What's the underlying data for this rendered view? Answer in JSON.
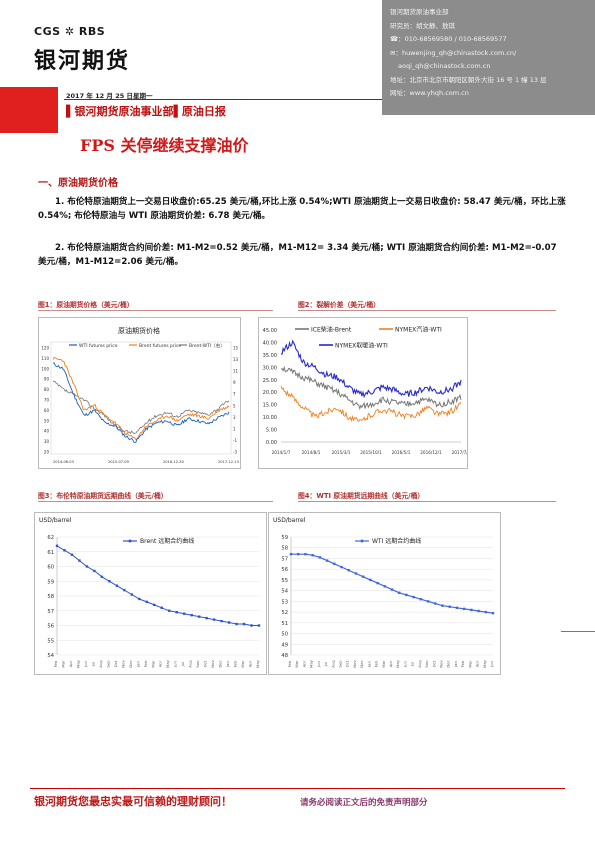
{
  "header": {
    "logo_brand": "CGS ✲ RBS",
    "logo_name": "银河期货",
    "date": "2017 年 12 月 25 日星期一",
    "department": "▌银河期货原油事业部▌原油日报",
    "title": "FPS 关停继续支撑油价"
  },
  "contact": {
    "lines": [
      "银河期货原油事业部",
      "研究员：胡文静、敖琪",
      "☎：010-68569580 / 010-68569577",
      "✉：huwenjing_qh@chinastock.com.cn/",
      "aoqi_qh@chinastock.com.cn",
      "地址：北京市北京市朝阳区朝外大街 16 号 1 幢 13 层",
      "网址：www.yhqh.com.cn"
    ]
  },
  "section1": {
    "heading": "一、原油期货价格",
    "p1": "1. 布伦特原油期货上一交易日收盘价:65.25 美元/桶,环比上涨 0.54%;WTI 原油期货上一交易日收盘价: 58.47 美元/桶，环比上涨 0.54%; 布伦特原油与 WTI 原油期货价差: 6.78 美元/桶。",
    "p2": "2. 布伦特原油期货合约间价差: M1-M2=0.52 美元/桶，M1-M12= 3.34 美元/桶; WTI 原油期货合约间价差: M1-M2=-0.07 美元/桶，M1-M12=2.06 美元/桶。"
  },
  "figures": {
    "fig1": "图1：原油期货价格（美元/桶）",
    "fig2": "图2：裂解价差（美元/桶）",
    "fig3": "图3：布伦特原油期货远期曲线（美元/桶）",
    "fig4": "图4：WTI 原油期货远期曲线（美元/桶）"
  },
  "footer": {
    "slogan": "银河期货您最忠实最可信赖的理财顾问！",
    "disclaimer": "请务必阅读正文后的免责声明部分"
  },
  "chart_data": [
    {
      "type": "line",
      "title": "原油期货价格",
      "series": [
        {
          "name": "WTI futures price",
          "color": "#1f5fbf"
        },
        {
          "name": "Brent futures price",
          "color": "#f08020"
        },
        {
          "name": "Brent-WTI（右）",
          "color": "#777777"
        }
      ],
      "x_ticks": [
        "2014-06-03",
        "2015-07-09",
        "2016-12-30",
        "2017-12-13"
      ],
      "y_left": [
        "120",
        "110",
        "100",
        "90",
        "80",
        "70",
        "60",
        "50",
        "40",
        "30",
        "20"
      ],
      "y_right": [
        "15",
        "13",
        "11",
        "9",
        "7",
        "5",
        "3",
        "1",
        "-1",
        "-3"
      ]
    },
    {
      "type": "line",
      "title": "",
      "series": [
        {
          "name": "ICE柴油-Brent",
          "color": "#777777"
        },
        {
          "name": "NYMEX汽油-WTI",
          "color": "#f08020"
        },
        {
          "name": "NYMEX取暖油-WTI",
          "color": "#2a2ad0"
        }
      ],
      "ylim": [
        0,
        45
      ],
      "y_ticks": [
        "45.00",
        "40.00",
        "35.00",
        "30.00",
        "25.00",
        "20.00",
        "15.00",
        "10.00",
        "5.00",
        "0.00"
      ],
      "x_ticks": [
        "2014/1/7",
        "2014/8/1",
        "2015/3/1",
        "2015/10/1",
        "2016/5/1",
        "2016/12/1",
        "2017/7/1"
      ]
    },
    {
      "type": "line",
      "ylabel": "USD/barrel",
      "series": [
        {
          "name": "Brent 远期合约曲线",
          "color": "#3355cc"
        }
      ],
      "ylim": [
        54,
        62
      ],
      "y_ticks": [
        "62",
        "61",
        "60",
        "59",
        "58",
        "57",
        "56",
        "55",
        "54"
      ],
      "values": [
        61.4,
        61.1,
        60.8,
        60.4,
        60.0,
        59.7,
        59.3,
        59.0,
        58.7,
        58.4,
        58.1,
        57.8,
        57.6,
        57.4,
        57.2,
        57.0,
        56.9,
        56.8,
        56.7,
        56.6,
        56.5,
        56.4,
        56.3,
        56.2,
        56.1,
        56.1,
        56.0,
        56.0
      ]
    },
    {
      "type": "line",
      "ylabel": "USD/barrel",
      "series": [
        {
          "name": "WTI 远期合约曲线",
          "color": "#4466dd"
        }
      ],
      "ylim": [
        48,
        59
      ],
      "y_ticks": [
        "59",
        "58",
        "57",
        "56",
        "55",
        "54",
        "53",
        "52",
        "51",
        "50",
        "49",
        "48"
      ],
      "values": [
        57.4,
        57.4,
        57.4,
        57.3,
        57.1,
        56.8,
        56.5,
        56.2,
        55.9,
        55.6,
        55.3,
        55.0,
        54.7,
        54.4,
        54.1,
        53.8,
        53.6,
        53.4,
        53.2,
        53.0,
        52.8,
        52.6,
        52.5,
        52.4,
        52.3,
        52.2,
        52.1,
        52.0,
        51.9
      ]
    }
  ]
}
